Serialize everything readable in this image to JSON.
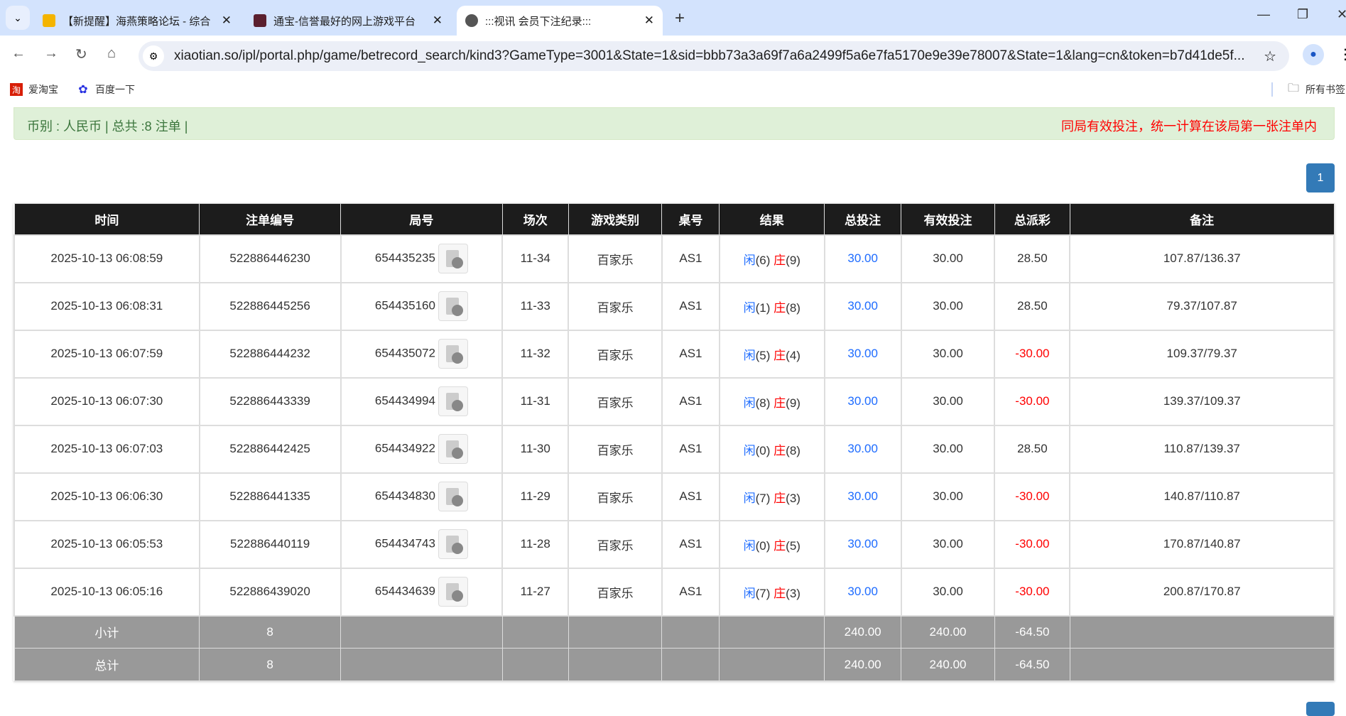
{
  "browser": {
    "tabs": [
      {
        "title": "【新提醒】海燕策略论坛 - 综合",
        "active": false,
        "favicon": "#f4b400"
      },
      {
        "title": "通宝-信誉最好的网上游戏平台",
        "active": false,
        "favicon": "#5a1f2e"
      },
      {
        "title": ":::视讯 会员下注纪录:::",
        "active": true,
        "favicon": "#555555"
      }
    ],
    "url": "xiaotian.so/ipl/portal.php/game/betrecord_search/kind3?GameType=3001&State=1&sid=bbb73a3a69f7a6a2499f5a6e7fa5170e9e39e78007&State=1&lang=cn&token=b7d41de5f...",
    "bookmarks": [
      {
        "label": "爱淘宝",
        "icon": "taobao-icon"
      },
      {
        "label": "百度一下",
        "icon": "baidu-paw-icon"
      }
    ],
    "all_bookmarks": "所有书签"
  },
  "summary": {
    "left": "币别 : 人民币 | 总共 :8 注单 |",
    "right": "同局有效投注，统一计算在该局第一张注单内"
  },
  "pagination": {
    "current": "1"
  },
  "table": {
    "headers": [
      "时间",
      "注单编号",
      "局号",
      "场次",
      "游戏类别",
      "桌号",
      "结果",
      "总投注",
      "有效投注",
      "总派彩",
      "备注"
    ],
    "rows": [
      {
        "time": "2025-10-13 06:08:59",
        "bet_id": "522886446230",
        "round": "654435235",
        "shoe": "11-34",
        "game": "百家乐",
        "table": "AS1",
        "player": "闲",
        "player_pt": "(6)",
        "banker": "庄",
        "banker_pt": "(9)",
        "bet": "30.00",
        "valid": "30.00",
        "payout": "28.50",
        "note": "107.87/136.37"
      },
      {
        "time": "2025-10-13 06:08:31",
        "bet_id": "522886445256",
        "round": "654435160",
        "shoe": "11-33",
        "game": "百家乐",
        "table": "AS1",
        "player": "闲",
        "player_pt": "(1)",
        "banker": "庄",
        "banker_pt": "(8)",
        "bet": "30.00",
        "valid": "30.00",
        "payout": "28.50",
        "note": "79.37/107.87"
      },
      {
        "time": "2025-10-13 06:07:59",
        "bet_id": "522886444232",
        "round": "654435072",
        "shoe": "11-32",
        "game": "百家乐",
        "table": "AS1",
        "player": "闲",
        "player_pt": "(5)",
        "banker": "庄",
        "banker_pt": "(4)",
        "bet": "30.00",
        "valid": "30.00",
        "payout": "-30.00",
        "note": "109.37/79.37"
      },
      {
        "time": "2025-10-13 06:07:30",
        "bet_id": "522886443339",
        "round": "654434994",
        "shoe": "11-31",
        "game": "百家乐",
        "table": "AS1",
        "player": "闲",
        "player_pt": "(8)",
        "banker": "庄",
        "banker_pt": "(9)",
        "bet": "30.00",
        "valid": "30.00",
        "payout": "-30.00",
        "note": "139.37/109.37"
      },
      {
        "time": "2025-10-13 06:07:03",
        "bet_id": "522886442425",
        "round": "654434922",
        "shoe": "11-30",
        "game": "百家乐",
        "table": "AS1",
        "player": "闲",
        "player_pt": "(0)",
        "banker": "庄",
        "banker_pt": "(8)",
        "bet": "30.00",
        "valid": "30.00",
        "payout": "28.50",
        "note": "110.87/139.37"
      },
      {
        "time": "2025-10-13 06:06:30",
        "bet_id": "522886441335",
        "round": "654434830",
        "shoe": "11-29",
        "game": "百家乐",
        "table": "AS1",
        "player": "闲",
        "player_pt": "(7)",
        "banker": "庄",
        "banker_pt": "(3)",
        "bet": "30.00",
        "valid": "30.00",
        "payout": "-30.00",
        "note": "140.87/110.87"
      },
      {
        "time": "2025-10-13 06:05:53",
        "bet_id": "522886440119",
        "round": "654434743",
        "shoe": "11-28",
        "game": "百家乐",
        "table": "AS1",
        "player": "闲",
        "player_pt": "(0)",
        "banker": "庄",
        "banker_pt": "(5)",
        "bet": "30.00",
        "valid": "30.00",
        "payout": "-30.00",
        "note": "170.87/140.87"
      },
      {
        "time": "2025-10-13 06:05:16",
        "bet_id": "522886439020",
        "round": "654434639",
        "shoe": "11-27",
        "game": "百家乐",
        "table": "AS1",
        "player": "闲",
        "player_pt": "(7)",
        "banker": "庄",
        "banker_pt": "(3)",
        "bet": "30.00",
        "valid": "30.00",
        "payout": "-30.00",
        "note": "200.87/170.87"
      }
    ],
    "subtotal": {
      "label": "小计",
      "count": "8",
      "bet": "240.00",
      "valid": "240.00",
      "payout": "-64.50"
    },
    "total": {
      "label": "总计",
      "count": "8",
      "bet": "240.00",
      "valid": "240.00",
      "payout": "-64.50"
    }
  },
  "colors": {
    "player": "#1e6cff",
    "banker": "#ff0000",
    "header_bg": "#1c1c1c",
    "summary_row_bg": "#999999",
    "alert_bg": "#dff0d8",
    "page_btn": "#337ab7"
  }
}
